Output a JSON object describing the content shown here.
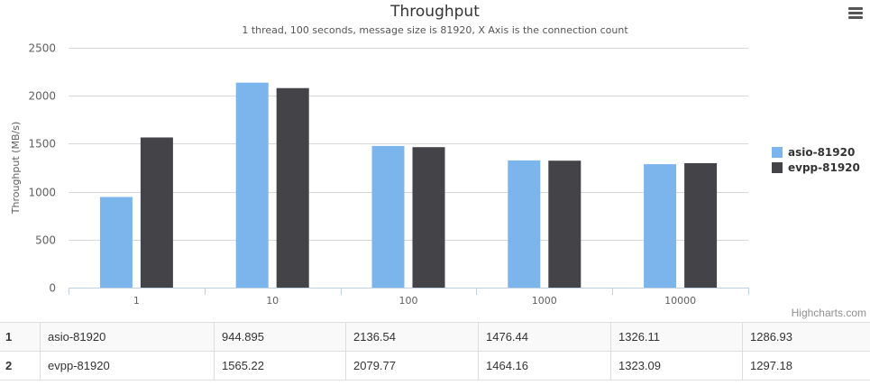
{
  "header": {
    "menu_icon": "hamburger-menu-icon"
  },
  "chart_data": {
    "type": "bar",
    "title": "Throughput",
    "subtitle": "1 thread, 100 seconds, message size is 81920, X Axis is the connection count",
    "xlabel": "",
    "ylabel": "Throughput (MB/s)",
    "categories": [
      "1",
      "10",
      "100",
      "1000",
      "10000"
    ],
    "yticks": [
      0,
      500,
      1000,
      1500,
      2000,
      2500
    ],
    "ylim": [
      0,
      2500
    ],
    "grid": true,
    "legend_position": "right",
    "series": [
      {
        "name": "asio-81920",
        "color": "#7cb5ec",
        "values": [
          944.895,
          2136.54,
          1476.44,
          1326.11,
          1286.93
        ]
      },
      {
        "name": "evpp-81920",
        "color": "#434348",
        "values": [
          1565.22,
          2079.77,
          1464.16,
          1323.09,
          1297.18
        ]
      }
    ]
  },
  "credits": "Highcharts.com",
  "table": {
    "rows": [
      {
        "index": "1",
        "name": "asio-81920",
        "cells": [
          "944.895",
          "2136.54",
          "1476.44",
          "1326.11",
          "1286.93"
        ]
      },
      {
        "index": "2",
        "name": "evpp-81920",
        "cells": [
          "1565.22",
          "2079.77",
          "1464.16",
          "1323.09",
          "1297.18"
        ]
      }
    ]
  }
}
